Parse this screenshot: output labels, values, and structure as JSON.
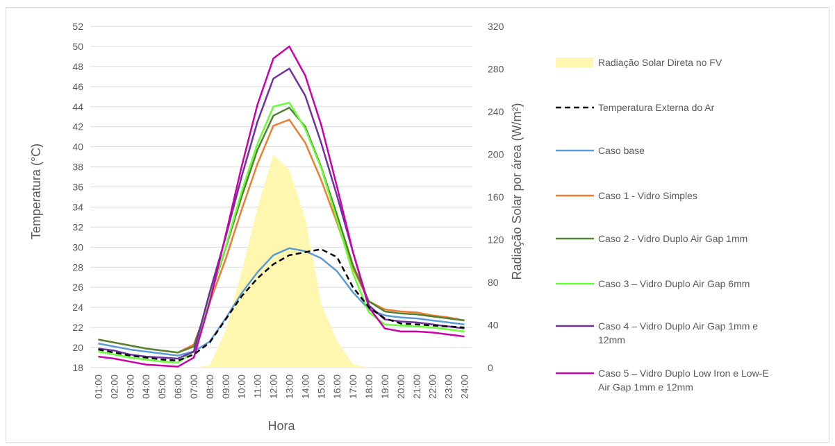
{
  "chart_data": {
    "type": "line",
    "title": "",
    "xlabel": "Hora",
    "ylabel": "Temperatura (°C)",
    "y2label": "Radiação Solar por área (W/m²)",
    "ylim": [
      18,
      52
    ],
    "y2lim": [
      0,
      320
    ],
    "grid": true,
    "legend_position": "right",
    "categories": [
      "01:00",
      "02:00",
      "03:00",
      "04:00",
      "05:00",
      "06:00",
      "07:00",
      "08:00",
      "09:00",
      "10:00",
      "11:00",
      "12:00",
      "13:00",
      "14:00",
      "15:00",
      "16:00",
      "17:00",
      "18:00",
      "19:00",
      "20:00",
      "21:00",
      "22:00",
      "23:00",
      "24:00"
    ],
    "area_series": {
      "name": "Radiação Solar Direta no FV",
      "axis": "right",
      "color": "#fff7b0",
      "values": [
        0,
        0,
        0,
        0,
        0,
        0,
        0,
        2,
        35,
        90,
        150,
        200,
        185,
        140,
        60,
        25,
        3,
        0,
        0,
        0,
        0,
        0,
        0,
        0
      ]
    },
    "series": [
      {
        "name": "Temperatura Externa do Ar",
        "color": "#000000",
        "dashed": true,
        "values": [
          19.8,
          19.5,
          19.2,
          19.0,
          18.8,
          18.7,
          19.3,
          20.5,
          22.8,
          25.1,
          26.9,
          28.3,
          29.2,
          29.5,
          29.8,
          29.0,
          26.0,
          24.0,
          22.9,
          22.4,
          22.3,
          22.2,
          22.1,
          22.0
        ]
      },
      {
        "name": "Caso base",
        "color": "#5b9bd5",
        "dashed": false,
        "values": [
          20.4,
          20.1,
          19.8,
          19.6,
          19.4,
          19.2,
          19.6,
          20.6,
          22.9,
          25.4,
          27.5,
          29.2,
          29.9,
          29.6,
          28.9,
          27.6,
          25.5,
          23.8,
          23.2,
          23.0,
          22.9,
          22.7,
          22.5,
          22.3
        ]
      },
      {
        "name": "Caso 1 - Vidro Simples",
        "color": "#ed7d31",
        "dashed": false,
        "values": [
          20.8,
          20.5,
          20.2,
          19.9,
          19.7,
          19.5,
          20.3,
          24.5,
          28.8,
          33.7,
          38.3,
          42.1,
          42.7,
          40.4,
          36.7,
          32.4,
          27.9,
          24.6,
          23.8,
          23.6,
          23.5,
          23.2,
          23.0,
          22.7
        ]
      },
      {
        "name": "Caso 2 - Vidro Duplo Air Gap 1mm",
        "color": "#548235",
        "dashed": false,
        "values": [
          20.8,
          20.5,
          20.2,
          19.9,
          19.7,
          19.5,
          20.1,
          24.9,
          29.9,
          35.0,
          39.7,
          43.1,
          43.9,
          42.0,
          38.0,
          33.2,
          28.2,
          24.6,
          23.6,
          23.4,
          23.3,
          23.1,
          22.9,
          22.7
        ]
      },
      {
        "name": "Caso 3 – Vidro Duplo Air Gap 6mm",
        "color": "#66ff33",
        "dashed": false,
        "values": [
          19.6,
          19.3,
          19.0,
          18.8,
          18.6,
          18.5,
          19.6,
          25.0,
          30.0,
          35.5,
          40.3,
          44.0,
          44.4,
          41.8,
          37.9,
          32.7,
          27.4,
          23.5,
          22.3,
          22.2,
          22.1,
          22.0,
          21.8,
          21.6
        ]
      },
      {
        "name": "Caso 4 – Vidro Duplo Air Gap 1mm e 12mm",
        "color": "#7030a0",
        "dashed": false,
        "values": [
          19.9,
          19.7,
          19.3,
          19.1,
          19.0,
          18.9,
          19.6,
          25.5,
          31.0,
          37.0,
          42.5,
          46.8,
          47.8,
          45.1,
          40.4,
          35.1,
          29.5,
          24.2,
          22.8,
          22.6,
          22.5,
          22.3,
          22.1,
          21.9
        ]
      },
      {
        "name": "Caso 5 – Vidro Duplo Low Iron e Low-E Air Gap 1mm e 12mm",
        "color": "#cc00aa",
        "dashed": false,
        "values": [
          19.1,
          18.9,
          18.6,
          18.3,
          18.2,
          18.1,
          19.0,
          24.5,
          31.2,
          38.0,
          44.2,
          48.8,
          50.0,
          47.1,
          42.2,
          36.0,
          29.5,
          24.0,
          21.9,
          21.6,
          21.6,
          21.5,
          21.3,
          21.1
        ]
      }
    ],
    "legend": [
      {
        "key": "area",
        "lines": [
          "Radiação Solar Direta no FV"
        ]
      },
      {
        "key": "s0",
        "lines": [
          "Temperatura Externa do Ar"
        ]
      },
      {
        "key": "s1",
        "lines": [
          "Caso base"
        ]
      },
      {
        "key": "s2",
        "lines": [
          "Caso 1 - Vidro Simples"
        ]
      },
      {
        "key": "s3",
        "lines": [
          "Caso 2 - Vidro Duplo Air Gap 1mm"
        ]
      },
      {
        "key": "s4",
        "lines": [
          "Caso 3 – Vidro Duplo Air Gap 6mm"
        ]
      },
      {
        "key": "s5",
        "lines": [
          "Caso 4 – Vidro Duplo Air Gap 1mm e",
          "12mm"
        ]
      },
      {
        "key": "s6",
        "lines": [
          "Caso 5 – Vidro Duplo Low Iron e Low-E",
          "Air Gap 1mm e 12mm"
        ]
      }
    ]
  }
}
